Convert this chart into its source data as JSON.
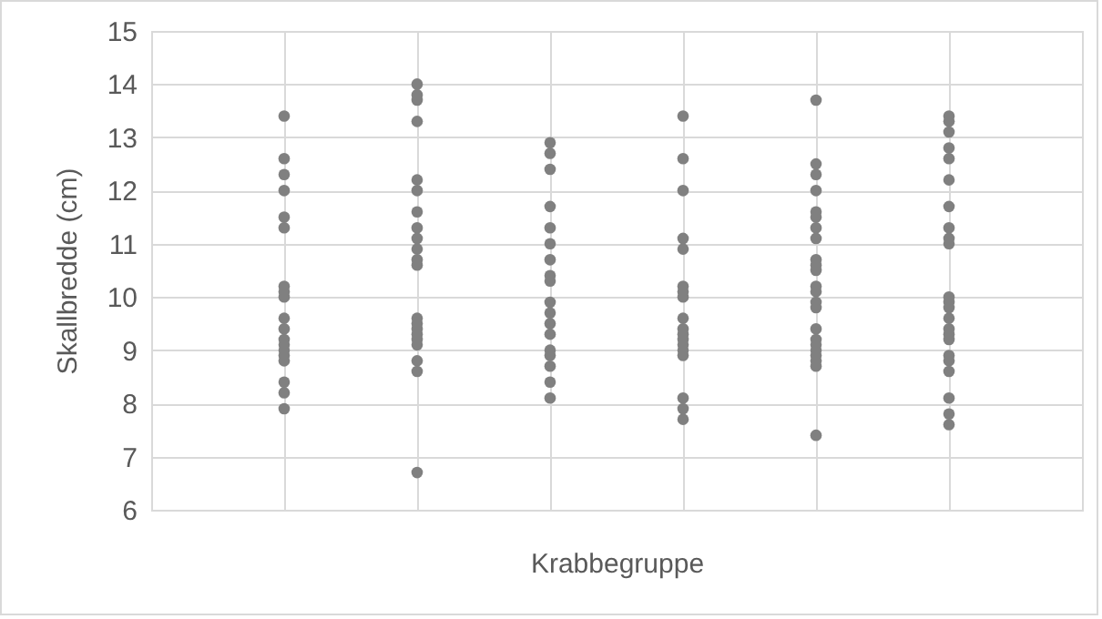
{
  "chart_data": {
    "type": "scatter",
    "xlabel": "Krabbegruppe",
    "ylabel": "Skallbredde (cm)",
    "categories": [
      null,
      null,
      null,
      null,
      null,
      null
    ],
    "ylim": [
      6,
      15
    ],
    "yticks": [
      6,
      7,
      8,
      9,
      10,
      11,
      12,
      13,
      14,
      15
    ],
    "grid": true,
    "marker": "circle",
    "tick_labels": "y",
    "series": [
      {
        "color": "#808080",
        "values": [
          13.4,
          14.0,
          12.9,
          13.4,
          13.7,
          13.4
        ]
      },
      {
        "color": "#808080",
        "values": [
          12.6,
          13.8,
          12.7,
          12.6,
          12.5,
          13.3
        ]
      },
      {
        "color": "#808080",
        "values": [
          12.3,
          13.7,
          12.4,
          12.0,
          12.3,
          13.1
        ]
      },
      {
        "color": "#808080",
        "values": [
          12.0,
          13.3,
          11.7,
          11.1,
          12.0,
          12.8
        ]
      },
      {
        "color": "#808080",
        "values": [
          11.5,
          12.2,
          11.3,
          10.9,
          11.6,
          12.6
        ]
      },
      {
        "color": "#808080",
        "values": [
          11.3,
          12.0,
          11.0,
          10.2,
          11.5,
          12.2
        ]
      },
      {
        "color": "#808080",
        "values": [
          10.2,
          11.6,
          10.7,
          10.1,
          11.3,
          11.7
        ]
      },
      {
        "color": "#808080",
        "values": [
          10.1,
          11.3,
          10.4,
          10.0,
          11.1,
          11.3
        ]
      },
      {
        "color": "#808080",
        "values": [
          10.0,
          11.1,
          10.3,
          9.6,
          10.7,
          11.1
        ]
      },
      {
        "color": "#808080",
        "values": [
          9.6,
          10.9,
          9.9,
          9.4,
          10.6,
          11.0
        ]
      },
      {
        "color": "#808080",
        "values": [
          9.4,
          10.7,
          9.7,
          9.3,
          10.5,
          10.0
        ]
      },
      {
        "color": "#808080",
        "values": [
          9.2,
          10.6,
          9.5,
          9.2,
          10.2,
          9.9
        ]
      },
      {
        "color": "#808080",
        "values": [
          9.1,
          9.6,
          9.3,
          9.1,
          10.1,
          9.8
        ]
      },
      {
        "color": "#808080",
        "values": [
          9.0,
          9.5,
          9.0,
          9.0,
          9.9,
          9.6
        ]
      },
      {
        "color": "#808080",
        "values": [
          8.9,
          9.4,
          8.9,
          8.9,
          9.8,
          9.4
        ]
      },
      {
        "color": "#808080",
        "values": [
          8.8,
          9.3,
          8.7,
          8.1,
          9.4,
          9.3
        ]
      },
      {
        "color": "#808080",
        "values": [
          8.4,
          9.2,
          8.4,
          7.9,
          9.2,
          9.2
        ]
      },
      {
        "color": "#808080",
        "values": [
          8.2,
          9.1,
          8.1,
          7.7,
          9.1,
          8.9
        ]
      },
      {
        "color": "#808080",
        "values": [
          7.9,
          8.8,
          null,
          null,
          9.0,
          8.8
        ]
      },
      {
        "color": "#808080",
        "values": [
          null,
          8.6,
          null,
          null,
          8.9,
          8.6
        ]
      },
      {
        "color": "#808080",
        "values": [
          null,
          6.7,
          null,
          null,
          8.8,
          8.1
        ]
      },
      {
        "color": "#808080",
        "values": [
          null,
          null,
          null,
          null,
          8.7,
          7.8
        ]
      },
      {
        "color": "#808080",
        "values": [
          null,
          null,
          null,
          null,
          7.4,
          7.6
        ]
      }
    ]
  }
}
